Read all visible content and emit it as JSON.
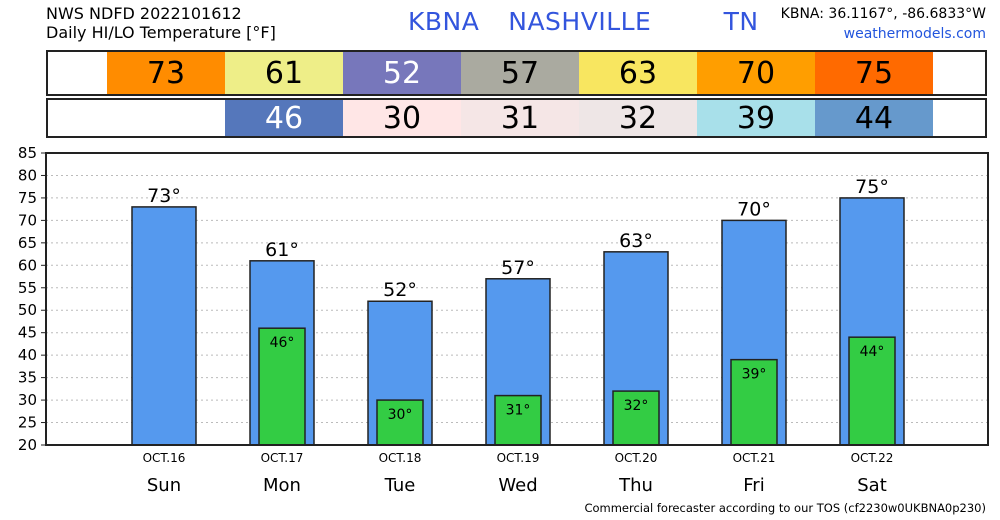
{
  "header": {
    "line1": "NWS NDFD 2022101612",
    "line2": "Daily HI/LO Temperature [°F]",
    "title": "KBNA  NASHVILLE     TN",
    "coords": "KBNA: 36.1167°, -86.6833°W",
    "site": "weathermodels.com"
  },
  "hi_strip": [
    {
      "text": "73",
      "bg": "#ff8c00",
      "fg": "#000000"
    },
    {
      "text": "61",
      "bg": "#eeee88",
      "fg": "#000000"
    },
    {
      "text": "52",
      "bg": "#7777bb",
      "fg": "#ffffff"
    },
    {
      "text": "57",
      "bg": "#aaaaa0",
      "fg": "#000000"
    },
    {
      "text": "63",
      "bg": "#f8e660",
      "fg": "#000000"
    },
    {
      "text": "70",
      "bg": "#ff9e00",
      "fg": "#000000"
    },
    {
      "text": "75",
      "bg": "#ff6a00",
      "fg": "#000000"
    }
  ],
  "lo_strip": [
    {
      "text": "",
      "bg": "#ffffff",
      "fg": "#000000"
    },
    {
      "text": "46",
      "bg": "#5577bb",
      "fg": "#ffffff"
    },
    {
      "text": "30",
      "bg": "#ffe6e6",
      "fg": "#000000"
    },
    {
      "text": "31",
      "bg": "#f5e6e6",
      "fg": "#000000"
    },
    {
      "text": "32",
      "bg": "#eee6e6",
      "fg": "#000000"
    },
    {
      "text": "39",
      "bg": "#a8e0ea",
      "fg": "#000000"
    },
    {
      "text": "44",
      "bg": "#6699cc",
      "fg": "#000000"
    }
  ],
  "chart_data": {
    "type": "bar",
    "categories": [
      "Sun",
      "Mon",
      "Tue",
      "Wed",
      "Thu",
      "Fri",
      "Sat"
    ],
    "dates": [
      "OCT.16",
      "OCT.17",
      "OCT.18",
      "OCT.19",
      "OCT.20",
      "OCT.21",
      "OCT.22"
    ],
    "series": [
      {
        "values": [
          73,
          61,
          52,
          57,
          63,
          70,
          75
        ],
        "color": "#5599ee"
      },
      {
        "values": [
          null,
          46,
          30,
          31,
          32,
          39,
          44
        ],
        "color": "#33cc44"
      }
    ],
    "hi_labels": [
      "73°",
      "61°",
      "52°",
      "57°",
      "63°",
      "70°",
      "75°"
    ],
    "lo_labels": [
      "",
      "46°",
      "30°",
      "31°",
      "32°",
      "39°",
      "44°"
    ],
    "ylim": [
      20,
      85
    ],
    "yticks": [
      "20",
      "25",
      "30",
      "35",
      "40",
      "45",
      "50",
      "55",
      "60",
      "65",
      "70",
      "75",
      "80",
      "85"
    ],
    "grid": true
  },
  "footer": "Commercial forecaster according to our TOS (cf2230w0UKBNA0p230)"
}
